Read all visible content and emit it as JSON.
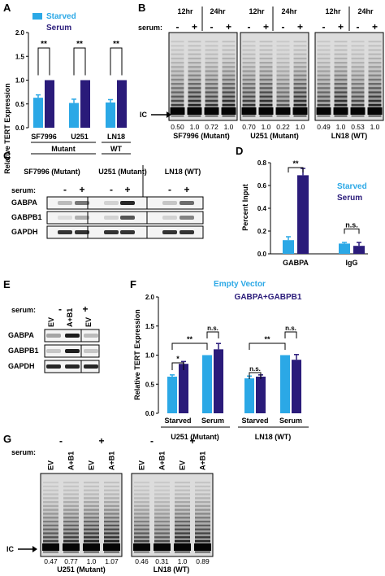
{
  "panels": {
    "A": {
      "letter": "A",
      "legend": [
        {
          "label": "Starved",
          "color": "#2ba8e6"
        },
        {
          "label": "Serum",
          "color": "#2a1b7a"
        }
      ],
      "ylabel": "Relative TERT Expression",
      "y_ticks": [
        "0.0",
        "0.5",
        "1.0",
        "1.5",
        "2.0"
      ],
      "group_labels": [
        "SF7996",
        "U251",
        "LN18"
      ],
      "status_labels": [
        "Mutant",
        "WT"
      ],
      "significance": [
        "**",
        "**",
        "**"
      ],
      "chart_data": {
        "type": "bar",
        "categories": [
          "SF7996",
          "U251",
          "LN18"
        ],
        "series": [
          {
            "name": "Starved",
            "values": [
              0.63,
              0.52,
              0.53
            ],
            "errors": [
              0.06,
              0.08,
              0.06
            ]
          },
          {
            "name": "Serum",
            "values": [
              1.0,
              1.0,
              1.0
            ],
            "errors": [
              0,
              0,
              0
            ]
          }
        ],
        "ylim": [
          0,
          2.0
        ]
      }
    },
    "B": {
      "letter": "B",
      "time_labels": [
        "12hr",
        "24hr",
        "12hr",
        "24hr",
        "12hr",
        "24hr"
      ],
      "serum_label": "serum:",
      "signs": [
        "-",
        "+",
        "-",
        "+",
        "-",
        "+",
        "-",
        "+",
        "-",
        "+",
        "-",
        "+"
      ],
      "ic_label": "IC",
      "values": [
        "0.50",
        "1.0",
        "0.72",
        "1.0",
        "0.70",
        "1.0",
        "0.22",
        "1.0",
        "0.49",
        "1.0",
        "0.53",
        "1.0"
      ],
      "line_names": [
        "SF7996 (Mutant)",
        "U251 (Mutant)",
        "LN18 (WT)"
      ]
    },
    "C": {
      "letter": "C",
      "headers": [
        "SF7996 (Mutant)",
        "U251 (Mutant)",
        "LN18 (WT)"
      ],
      "serum_label": "serum:",
      "signs": [
        "-",
        "+",
        "-",
        "+",
        "-",
        "+"
      ],
      "rows": [
        "GABPA",
        "GABPB1",
        "GAPDH"
      ]
    },
    "D": {
      "letter": "D",
      "legend": [
        {
          "label": "Starved",
          "color": "#2ba8e6"
        },
        {
          "label": "Serum",
          "color": "#2a1b7a"
        }
      ],
      "ylabel": "Percent Input",
      "y_ticks": [
        "0.0",
        "0.2",
        "0.4",
        "0.6",
        "0.8"
      ],
      "significance": [
        "**",
        "n.s."
      ],
      "chart_data": {
        "type": "bar",
        "categories": [
          "GABPA",
          "IgG"
        ],
        "series": [
          {
            "name": "Starved",
            "values": [
              0.12,
              0.09
            ],
            "errors": [
              0.03,
              0.01
            ]
          },
          {
            "name": "Serum",
            "values": [
              0.69,
              0.07
            ],
            "errors": [
              0.06,
              0.03
            ]
          }
        ],
        "ylim": [
          0,
          0.8
        ]
      }
    },
    "E": {
      "letter": "E",
      "serum_label": "serum:",
      "signs": [
        "-",
        "+"
      ],
      "lanes": [
        "EV",
        "A+B1",
        "EV"
      ],
      "rows": [
        "GABPA",
        "GABPB1",
        "GAPDH"
      ]
    },
    "F": {
      "letter": "F",
      "legend": [
        {
          "label": "Empty Vector",
          "color": "#2ba8e6"
        },
        {
          "label": "GABPA+GABPB1",
          "color": "#2a1b7a"
        }
      ],
      "ylabel": "Relative TERT Expression",
      "y_ticks": [
        "0.0",
        "0.5",
        "1.0",
        "1.5",
        "2.0"
      ],
      "cond_labels": [
        "Starved",
        "Serum",
        "Starved",
        "Serum"
      ],
      "line_labels": [
        "U251 (Mutant)",
        "LN18 (WT)"
      ],
      "significance": [
        "*",
        "**",
        "n.s.",
        "n.s.",
        "**",
        "n.s."
      ],
      "chart_data": {
        "type": "bar",
        "categories": [
          "Starved",
          "Serum",
          "Starved",
          "Serum"
        ],
        "series": [
          {
            "name": "Empty Vector",
            "values": [
              0.63,
              1.0,
              0.6,
              1.0
            ],
            "errors": [
              0.03,
              0,
              0.04,
              0
            ]
          },
          {
            "name": "GABPA+GABPB1",
            "values": [
              0.85,
              1.1,
              0.63,
              0.92
            ],
            "errors": [
              0.04,
              0.1,
              0.03,
              0.09
            ]
          }
        ],
        "ylim": [
          0,
          2.0
        ]
      }
    },
    "G": {
      "letter": "G",
      "serum_label": "serum:",
      "signs": [
        "-",
        "+",
        "-",
        "+"
      ],
      "lanes": [
        "EV",
        "A+B1",
        "EV",
        "A+B1",
        "EV",
        "A+B1",
        "EV",
        "A+B1"
      ],
      "ic_label": "IC",
      "values": [
        "0.47",
        "0.77",
        "1.0",
        "1.07",
        "0.46",
        "0.31",
        "1.0",
        "0.89"
      ],
      "line_names": [
        "U251 (Mutant)",
        "LN18 (WT)"
      ]
    }
  }
}
